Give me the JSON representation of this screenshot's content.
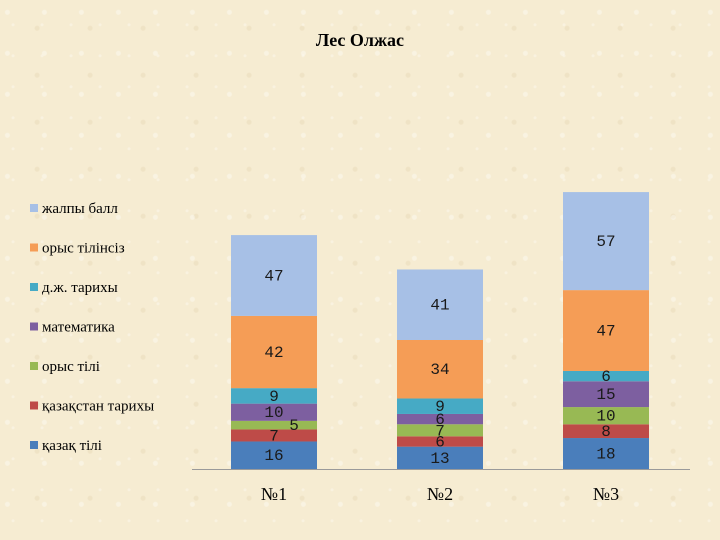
{
  "chart_data": {
    "type": "bar",
    "stacked": true,
    "title": "Лес Олжас",
    "categories": [
      "№1",
      "№2",
      "№3"
    ],
    "series": [
      {
        "name": "қазақ тілі",
        "color": "#4a7ebb",
        "values": [
          16,
          13,
          18
        ]
      },
      {
        "name": "қазақстан тарихы",
        "color": "#be4b48",
        "values": [
          7,
          6,
          8
        ]
      },
      {
        "name": "орыс тілі",
        "color": "#98b954",
        "values": [
          5,
          7,
          10
        ]
      },
      {
        "name": "математика",
        "color": "#7d5fa0",
        "values": [
          10,
          6,
          15
        ]
      },
      {
        "name": "д.ж. тарихы",
        "color": "#46aac5",
        "values": [
          9,
          9,
          6
        ]
      },
      {
        "name": "орыс тілінсіз",
        "color": "#f59d56",
        "values": [
          42,
          34,
          47
        ]
      },
      {
        "name": "жалпы балл",
        "color": "#a7c0e6",
        "values": [
          47,
          41,
          57
        ]
      }
    ],
    "legend_position": "left",
    "grid": false
  }
}
